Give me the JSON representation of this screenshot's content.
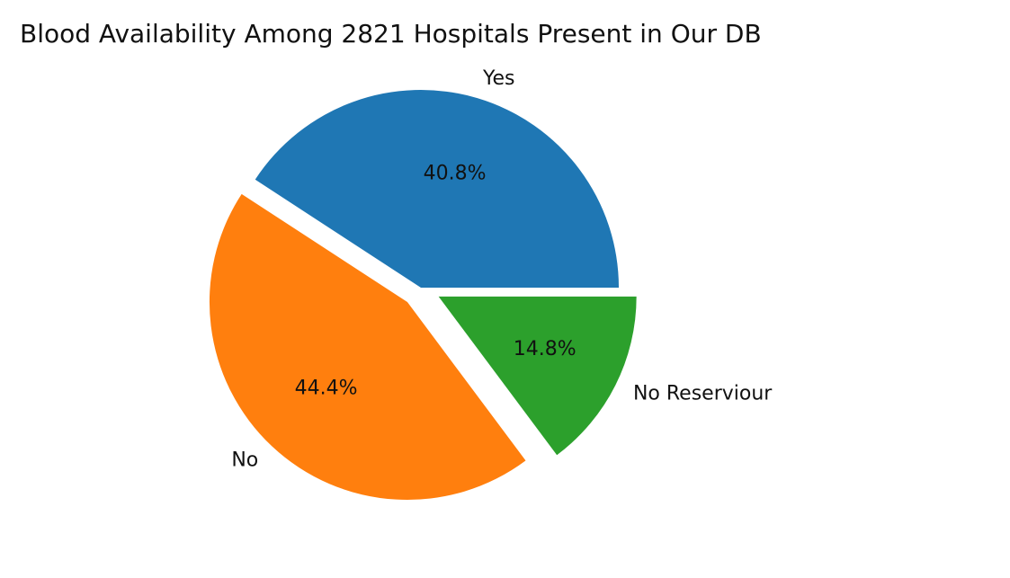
{
  "chart_data": {
    "type": "pie",
    "title": "Blood Availability Among 2821 Hospitals Present in Our DB",
    "slices": [
      {
        "label": "Yes",
        "value": 40.8,
        "pct_label": "40.8%",
        "color": "#1f77b4",
        "explode": 0.0
      },
      {
        "label": "No",
        "value": 44.4,
        "pct_label": "44.4%",
        "color": "#ff7f0e",
        "explode": 0.1
      },
      {
        "label": "No Reserviour",
        "value": 14.8,
        "pct_label": "14.8%",
        "color": "#2ca02c",
        "explode": 0.1
      }
    ],
    "start_angle_deg": 0,
    "counterclock": true,
    "legend": "none"
  }
}
